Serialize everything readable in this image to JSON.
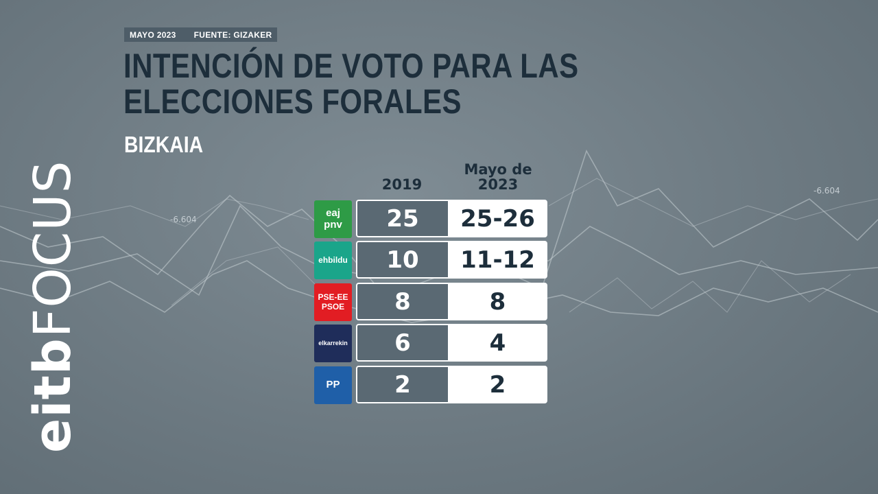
{
  "header": {
    "date": "MAYO 2023",
    "source": "FUENTE: GIZAKER",
    "title": "INTENCIÓN DE VOTO PARA LAS ELECCIONES FORALES",
    "subtitle": "BIZKAIA"
  },
  "brand": {
    "part1": "eitb",
    "part2": "FOCUS"
  },
  "background": {
    "label_left": "-6.604",
    "label_right": "-6.604"
  },
  "chart_data": {
    "type": "table",
    "title": "INTENCIÓN DE VOTO PARA LAS ELECCIONES FORALES",
    "subtitle": "BIZKAIA",
    "columns": [
      "2019",
      "Mayo de 2023"
    ],
    "rows": [
      {
        "party": "eaj pnv",
        "logo_lines": [
          "eaj",
          "pnv"
        ],
        "color": "#2e9b46",
        "v2019": "25",
        "v2023": "25-26"
      },
      {
        "party": "ehbildu",
        "logo_lines": [
          "ehbildu"
        ],
        "color": "#1aa58a",
        "v2019": "10",
        "v2023": "11-12"
      },
      {
        "party": "PSE-EE PSOE",
        "logo_lines": [
          "PSE-EE",
          "PSOE"
        ],
        "color": "#e21d23",
        "v2019": "8",
        "v2023": "8"
      },
      {
        "party": "elkarrekin",
        "logo_lines": [
          "elkarrekin"
        ],
        "color": "#1f2d5a",
        "v2019": "6",
        "v2023": "4"
      },
      {
        "party": "PP",
        "logo_lines": [
          "PP"
        ],
        "color": "#1f5fa8",
        "v2019": "2",
        "v2023": "2"
      }
    ]
  }
}
